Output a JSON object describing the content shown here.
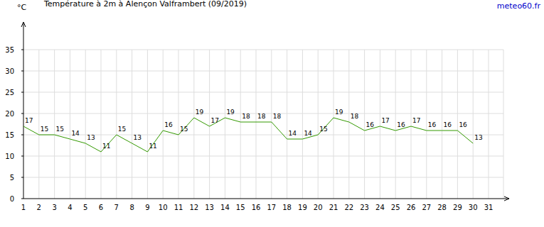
{
  "chart_data": {
    "type": "line",
    "title": "Température à 2m à Alençon Valframbert (09/2019)",
    "annotation": "meteo60.fr",
    "y_label": "°C",
    "categories": [
      "1",
      "2",
      "3",
      "4",
      "5",
      "6",
      "7",
      "8",
      "9",
      "10",
      "11",
      "12",
      "13",
      "14",
      "15",
      "16",
      "17",
      "18",
      "19",
      "20",
      "21",
      "22",
      "23",
      "24",
      "25",
      "26",
      "27",
      "28",
      "29",
      "30",
      "31"
    ],
    "values": [
      17,
      15,
      15,
      14,
      13,
      11,
      15,
      13,
      11,
      16,
      15,
      19,
      17,
      19,
      18,
      18,
      18,
      14,
      14,
      15,
      19,
      18,
      16,
      17,
      16,
      17,
      16,
      16,
      16,
      13,
      null
    ],
    "color": "#339900",
    "ylim": [
      0,
      40
    ],
    "yticks": [
      0,
      5,
      10,
      15,
      20,
      25,
      30,
      35
    ],
    "grid": true,
    "data_labels": true
  }
}
